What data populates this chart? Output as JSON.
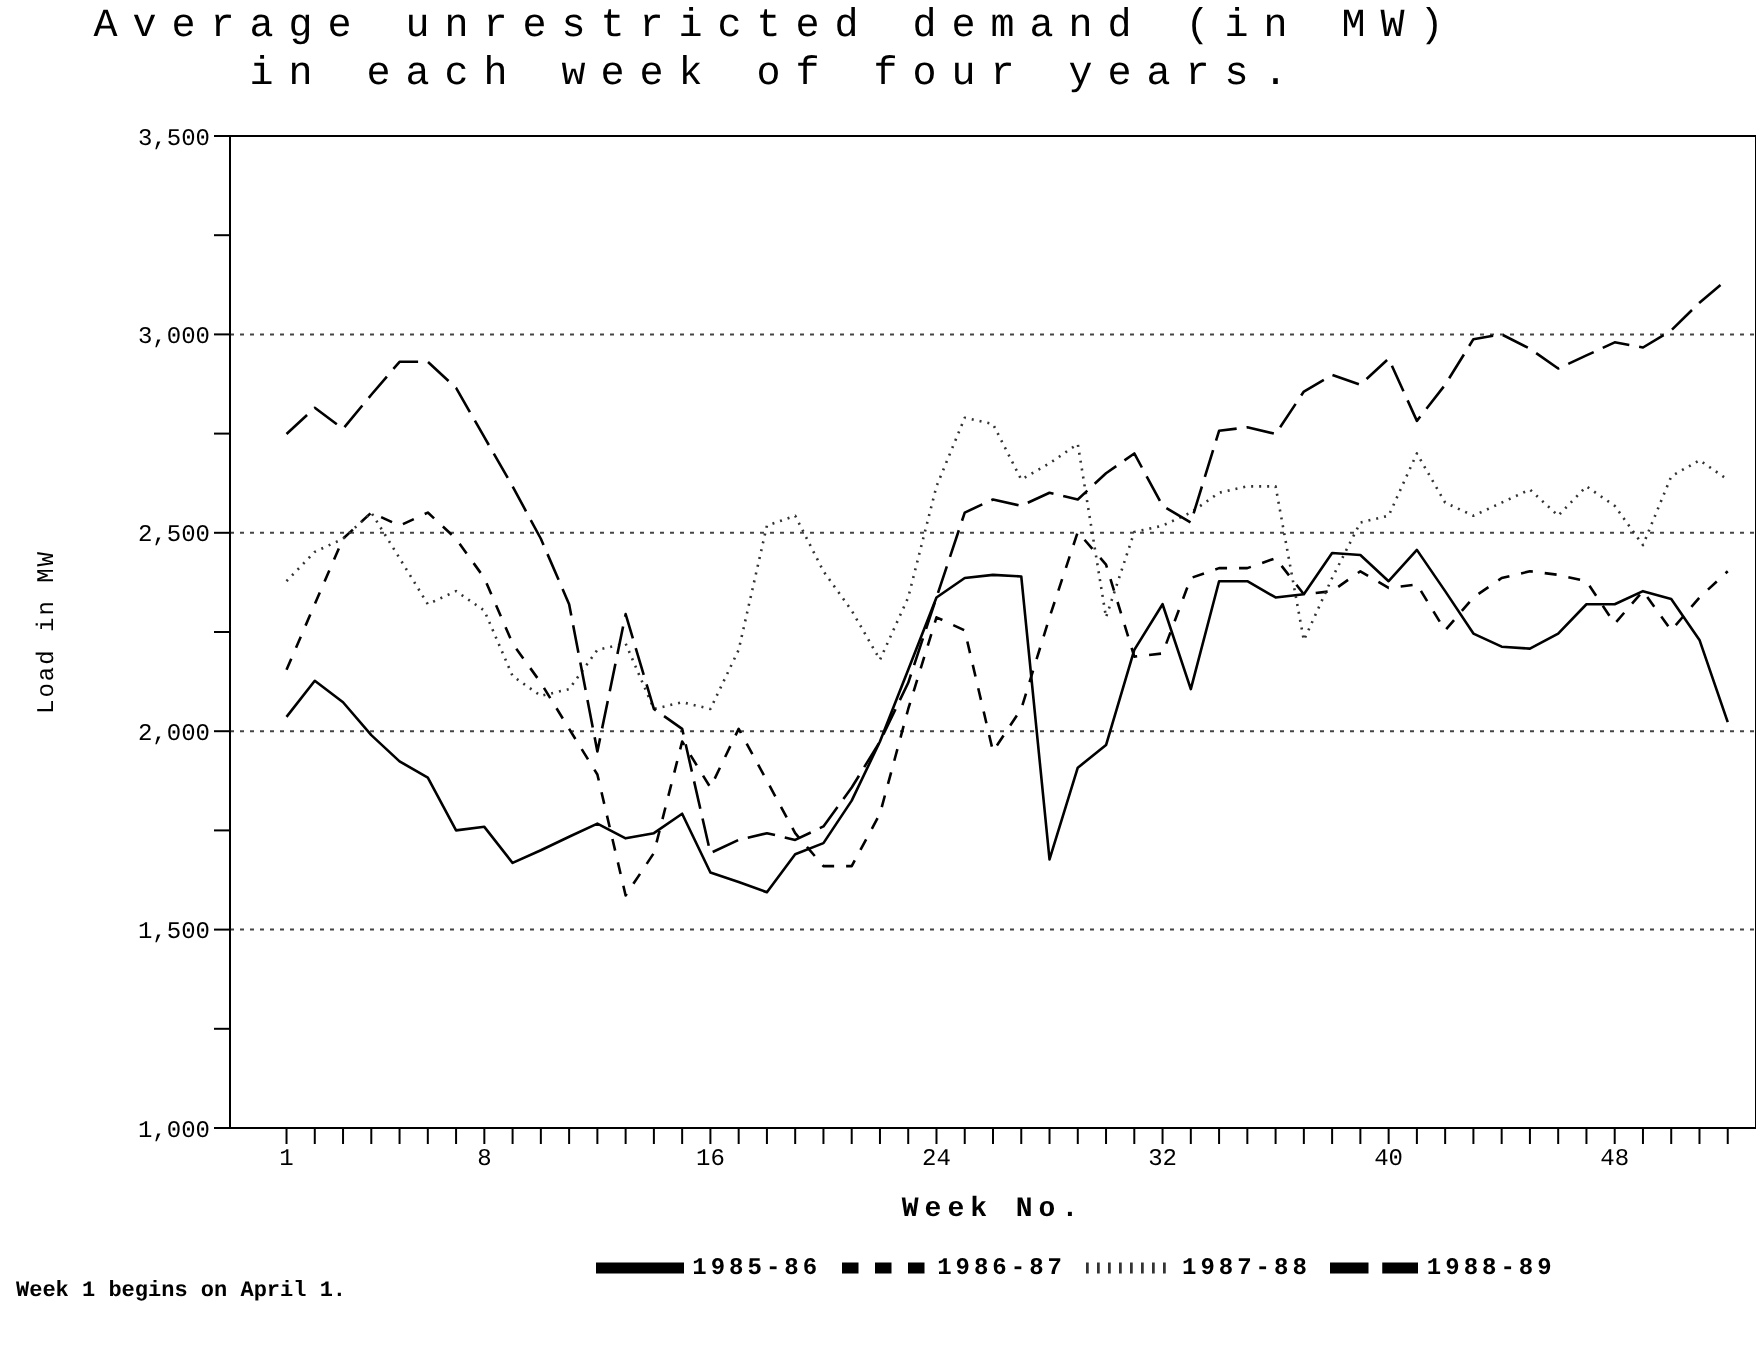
{
  "chart_data": {
    "type": "line",
    "title": "Average unrestricted demand (in MW) in each week of four years.",
    "xlabel": "Week No.",
    "ylabel": "Load in MW",
    "x": [
      1,
      2,
      3,
      4,
      5,
      6,
      7,
      8,
      9,
      10,
      11,
      12,
      13,
      14,
      15,
      16,
      17,
      18,
      19,
      20,
      21,
      22,
      23,
      24,
      25,
      26,
      27,
      28,
      29,
      30,
      31,
      32,
      33,
      34,
      35,
      36,
      37,
      38,
      39,
      40,
      41,
      42,
      43,
      44,
      45,
      46,
      47,
      48,
      49,
      50,
      51,
      52
    ],
    "series": [
      {
        "name": "1985-86",
        "color": "#000000",
        "line_style": "solid",
        "values": [
          2036,
          2127,
          2073,
          1990,
          1924,
          1883,
          1750,
          1759,
          1668,
          1700,
          1734,
          1767,
          1730,
          1743,
          1792,
          1644,
          1620,
          1594,
          1690,
          1718,
          1825,
          1974,
          2155,
          2337,
          2386,
          2394,
          2390,
          1677,
          1908,
          1965,
          2205,
          2320,
          2106,
          2378,
          2378,
          2337,
          2345,
          2449,
          2444,
          2378,
          2457,
          2353,
          2246,
          2213,
          2208,
          2246,
          2320,
          2320,
          2353,
          2333,
          2230,
          2023
        ]
      },
      {
        "name": "1986-87",
        "color": "#000000",
        "line_style": "dashed",
        "values": [
          2155,
          2320,
          2485,
          2551,
          2518,
          2551,
          2485,
          2386,
          2221,
          2122,
          2006,
          1891,
          1586,
          1693,
          1974,
          1858,
          2006,
          1875,
          1743,
          1660,
          1660,
          1792,
          2056,
          2287,
          2254,
          1949,
          2056,
          2287,
          2502,
          2420,
          2188,
          2196,
          2386,
          2411,
          2411,
          2436,
          2345,
          2353,
          2403,
          2361,
          2370,
          2254,
          2337,
          2386,
          2403,
          2394,
          2378,
          2271,
          2353,
          2254,
          2337,
          2403
        ]
      },
      {
        "name": "1987-88",
        "color": "#333333",
        "line_style": "dotted",
        "values": [
          2378,
          2452,
          2485,
          2551,
          2436,
          2320,
          2353,
          2304,
          2139,
          2089,
          2106,
          2205,
          2221,
          2056,
          2073,
          2056,
          2205,
          2518,
          2543,
          2403,
          2304,
          2180,
          2337,
          2617,
          2790,
          2774,
          2634,
          2675,
          2724,
          2287,
          2502,
          2518,
          2551,
          2601,
          2617,
          2617,
          2229,
          2386,
          2526,
          2543,
          2700,
          2576,
          2543,
          2576,
          2609,
          2543,
          2617,
          2568,
          2469,
          2642,
          2683,
          2634
        ]
      },
      {
        "name": "1988-89",
        "color": "#000000",
        "line_style": "dashed",
        "values": [
          2749,
          2815,
          2762,
          2848,
          2931,
          2931,
          2865,
          2741,
          2617,
          2485,
          2320,
          1949,
          2295,
          2056,
          2006,
          1693,
          1726,
          1743,
          1726,
          1760,
          1858,
          1974,
          2122,
          2337,
          2551,
          2584,
          2568,
          2601,
          2584,
          2650,
          2700,
          2568,
          2526,
          2757,
          2766,
          2749,
          2856,
          2898,
          2873,
          2939,
          2782,
          2873,
          2988,
          3000,
          2964,
          2914,
          2947,
          2980,
          2967,
          3010,
          3080,
          3140
        ]
      }
    ],
    "xlim": [
      -1,
      53
    ],
    "xticks": [
      1,
      {
        "value": 2,
        "label": null
      },
      {
        "value": 3,
        "label": null
      },
      {
        "value": 4,
        "label": null
      },
      {
        "value": 5,
        "label": null
      },
      {
        "value": 6,
        "label": null
      },
      {
        "value": 7,
        "label": null
      },
      8,
      {
        "value": 9,
        "label": null
      },
      {
        "value": 10,
        "label": null
      },
      {
        "value": 11,
        "label": null
      },
      {
        "value": 12,
        "label": null
      },
      {
        "value": 13,
        "label": null
      },
      {
        "value": 14,
        "label": null
      },
      {
        "value": 15,
        "label": null
      },
      16,
      {
        "value": 17,
        "label": null
      },
      {
        "value": 18,
        "label": null
      },
      {
        "value": 19,
        "label": null
      },
      {
        "value": 20,
        "label": null
      },
      {
        "value": 21,
        "label": null
      },
      {
        "value": 22,
        "label": null
      },
      {
        "value": 23,
        "label": null
      },
      24,
      {
        "value": 25,
        "label": null
      },
      {
        "value": 26,
        "label": null
      },
      {
        "value": 27,
        "label": null
      },
      {
        "value": 28,
        "label": null
      },
      {
        "value": 29,
        "label": null
      },
      {
        "value": 30,
        "label": null
      },
      {
        "value": 31,
        "label": null
      },
      32,
      {
        "value": 33,
        "label": null
      },
      {
        "value": 34,
        "label": null
      },
      {
        "value": 35,
        "label": null
      },
      {
        "value": 36,
        "label": null
      },
      {
        "value": 37,
        "label": null
      },
      {
        "value": 38,
        "label": null
      },
      {
        "value": 39,
        "label": null
      },
      40,
      {
        "value": 41,
        "label": null
      },
      {
        "value": 42,
        "label": null
      },
      {
        "value": 43,
        "label": null
      },
      {
        "value": 44,
        "label": null
      },
      {
        "value": 45,
        "label": null
      },
      {
        "value": 46,
        "label": null
      },
      {
        "value": 47,
        "label": null
      },
      48,
      {
        "value": 49,
        "label": null
      },
      {
        "value": 50,
        "label": null
      },
      {
        "value": 51,
        "label": null
      },
      {
        "value": 52,
        "label": null
      }
    ],
    "ylim": [
      1000,
      3500
    ],
    "yticks": [
      {
        "value": 1000,
        "label": "1,000"
      },
      {
        "value": 1250,
        "label": null
      },
      {
        "value": 1500,
        "label": "1,500"
      },
      {
        "value": 1750,
        "label": null
      },
      {
        "value": 2000,
        "label": "2,000"
      },
      {
        "value": 2250,
        "label": null
      },
      {
        "value": 2500,
        "label": "2,500"
      },
      {
        "value": 2750,
        "label": null
      },
      {
        "value": 3000,
        "label": "3,000"
      },
      {
        "value": 3250,
        "label": null
      },
      {
        "value": 3500,
        "label": "3,500"
      }
    ],
    "grid": "y",
    "legend": "bottom",
    "marker": "none",
    "annotations": [
      "Week 1 begins on April 1."
    ]
  }
}
